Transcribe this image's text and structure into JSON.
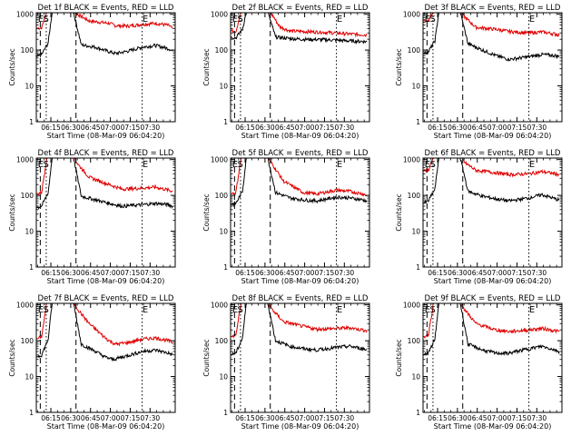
{
  "colors": {
    "events": "#000000",
    "lld": "#e00000",
    "axis": "#000000"
  },
  "common": {
    "ylabel": "Counts/sec",
    "xlabel": "Start Time (08-Mar-09 06:04:20)",
    "xticks": [
      "06:15",
      "06:30",
      "06:45",
      "07:00",
      "07:15",
      "07:30"
    ],
    "yticks": [
      "1",
      "10",
      "100",
      "1000"
    ]
  },
  "chart_data": [
    {
      "type": "line",
      "title": "Det 1f BLACK = Events, RED = LLD",
      "marker_labels": [
        "E",
        "S",
        "E"
      ],
      "yscale": "log",
      "ylim": [
        1,
        1100
      ],
      "series": [
        {
          "color": "#e00000",
          "points": [
            [
              0,
              400
            ],
            [
              4,
              420
            ],
            [
              8,
              1200
            ],
            [
              12,
              1200
            ],
            [
              28,
              1200
            ],
            [
              32,
              950
            ],
            [
              40,
              650
            ],
            [
              55,
              560
            ],
            [
              60,
              480
            ],
            [
              70,
              470
            ],
            [
              80,
              520
            ],
            [
              90,
              560
            ],
            [
              100,
              490
            ],
            [
              103,
              400
            ]
          ]
        },
        {
          "color": "#000000",
          "points": [
            [
              0,
              65
            ],
            [
              4,
              75
            ],
            [
              9,
              160
            ],
            [
              12,
              1200
            ],
            [
              28,
              1200
            ],
            [
              34,
              140
            ],
            [
              45,
              120
            ],
            [
              55,
              90
            ],
            [
              60,
              80
            ],
            [
              70,
              95
            ],
            [
              80,
              120
            ],
            [
              90,
              135
            ],
            [
              100,
              110
            ],
            [
              103,
              95
            ]
          ]
        }
      ]
    },
    {
      "type": "line",
      "title": "Det 2f BLACK = Events, RED = LLD",
      "marker_labels": [
        "E",
        "S",
        "E"
      ],
      "yscale": "log",
      "ylim": [
        1,
        1100
      ],
      "series": [
        {
          "color": "#e00000",
          "points": [
            [
              0,
              350
            ],
            [
              4,
              330
            ],
            [
              8,
              1200
            ],
            [
              12,
              1200
            ],
            [
              28,
              1200
            ],
            [
              32,
              900
            ],
            [
              37,
              450
            ],
            [
              45,
              340
            ],
            [
              55,
              330
            ],
            [
              65,
              320
            ],
            [
              80,
              300
            ],
            [
              90,
              280
            ],
            [
              100,
              270
            ],
            [
              103,
              260
            ]
          ]
        },
        {
          "color": "#000000",
          "points": [
            [
              0,
              230
            ],
            [
              4,
              220
            ],
            [
              9,
              380
            ],
            [
              12,
              1200
            ],
            [
              28,
              1200
            ],
            [
              34,
              230
            ],
            [
              45,
              210
            ],
            [
              55,
              200
            ],
            [
              70,
              195
            ],
            [
              80,
              190
            ],
            [
              90,
              180
            ],
            [
              100,
              175
            ],
            [
              103,
              170
            ]
          ]
        }
      ]
    },
    {
      "type": "line",
      "title": "Det 3f BLACK = Events, RED = LLD",
      "marker_labels": [
        "E",
        "S",
        "E"
      ],
      "yscale": "log",
      "ylim": [
        1,
        1100
      ],
      "series": [
        {
          "color": "#e00000",
          "points": [
            [
              0,
              650
            ],
            [
              4,
              680
            ],
            [
              8,
              1200
            ],
            [
              12,
              1200
            ],
            [
              28,
              1200
            ],
            [
              32,
              800
            ],
            [
              40,
              430
            ],
            [
              55,
              380
            ],
            [
              65,
              330
            ],
            [
              80,
              300
            ],
            [
              90,
              320
            ],
            [
              100,
              280
            ],
            [
              103,
              260
            ]
          ]
        },
        {
          "color": "#000000",
          "points": [
            [
              0,
              80
            ],
            [
              4,
              90
            ],
            [
              9,
              180
            ],
            [
              12,
              1200
            ],
            [
              28,
              1200
            ],
            [
              34,
              150
            ],
            [
              45,
              100
            ],
            [
              55,
              70
            ],
            [
              65,
              55
            ],
            [
              80,
              65
            ],
            [
              90,
              75
            ],
            [
              100,
              70
            ],
            [
              103,
              65
            ]
          ]
        }
      ]
    },
    {
      "type": "line",
      "title": "Det 4f BLACK = Events, RED = LLD",
      "marker_labels": [
        "E",
        "S",
        "E"
      ],
      "yscale": "log",
      "ylim": [
        1,
        1100
      ],
      "series": [
        {
          "color": "#e00000",
          "points": [
            [
              0,
              110
            ],
            [
              4,
              120
            ],
            [
              8,
              1200
            ],
            [
              12,
              1200
            ],
            [
              28,
              1200
            ],
            [
              32,
              700
            ],
            [
              40,
              320
            ],
            [
              55,
              200
            ],
            [
              65,
              150
            ],
            [
              80,
              160
            ],
            [
              90,
              170
            ],
            [
              100,
              140
            ],
            [
              103,
              130
            ]
          ]
        },
        {
          "color": "#000000",
          "points": [
            [
              0,
              45
            ],
            [
              4,
              50
            ],
            [
              9,
              120
            ],
            [
              12,
              1200
            ],
            [
              28,
              1200
            ],
            [
              34,
              95
            ],
            [
              45,
              75
            ],
            [
              55,
              60
            ],
            [
              65,
              50
            ],
            [
              80,
              55
            ],
            [
              90,
              60
            ],
            [
              100,
              55
            ],
            [
              103,
              50
            ]
          ]
        }
      ]
    },
    {
      "type": "line",
      "title": "Det 5f BLACK = Events, RED = LLD",
      "marker_labels": [
        "E",
        "S",
        "E"
      ],
      "yscale": "log",
      "ylim": [
        1,
        1100
      ],
      "series": [
        {
          "color": "#e00000",
          "points": [
            [
              0,
              110
            ],
            [
              4,
              120
            ],
            [
              8,
              1200
            ],
            [
              12,
              1200
            ],
            [
              28,
              1200
            ],
            [
              32,
              700
            ],
            [
              40,
              250
            ],
            [
              55,
              120
            ],
            [
              65,
              110
            ],
            [
              80,
              140
            ],
            [
              90,
              130
            ],
            [
              100,
              110
            ],
            [
              103,
              100
            ]
          ]
        },
        {
          "color": "#000000",
          "points": [
            [
              0,
              55
            ],
            [
              4,
              60
            ],
            [
              9,
              130
            ],
            [
              12,
              1200
            ],
            [
              28,
              1200
            ],
            [
              34,
              120
            ],
            [
              45,
              85
            ],
            [
              55,
              75
            ],
            [
              65,
              70
            ],
            [
              80,
              90
            ],
            [
              90,
              85
            ],
            [
              100,
              75
            ],
            [
              103,
              70
            ]
          ]
        }
      ]
    },
    {
      "type": "line",
      "title": "Det 6f BLACK = Events, RED = LLD",
      "marker_labels": [
        "E",
        "S",
        "E"
      ],
      "yscale": "log",
      "ylim": [
        1,
        1100
      ],
      "series": [
        {
          "color": "#e00000",
          "points": [
            [
              0,
              480
            ],
            [
              4,
              500
            ],
            [
              8,
              1200
            ],
            [
              12,
              1200
            ],
            [
              28,
              1200
            ],
            [
              32,
              800
            ],
            [
              40,
              500
            ],
            [
              55,
              430
            ],
            [
              65,
              380
            ],
            [
              80,
              400
            ],
            [
              90,
              460
            ],
            [
              100,
              400
            ],
            [
              103,
              380
            ]
          ]
        },
        {
          "color": "#000000",
          "points": [
            [
              0,
              60
            ],
            [
              4,
              70
            ],
            [
              9,
              150
            ],
            [
              12,
              1200
            ],
            [
              28,
              1200
            ],
            [
              34,
              130
            ],
            [
              45,
              95
            ],
            [
              55,
              80
            ],
            [
              65,
              70
            ],
            [
              80,
              85
            ],
            [
              90,
              105
            ],
            [
              100,
              80
            ],
            [
              103,
              75
            ]
          ]
        }
      ]
    },
    {
      "type": "line",
      "title": "Det 7f BLACK = Events, RED = LLD",
      "marker_labels": [
        "E",
        "S",
        "E"
      ],
      "yscale": "log",
      "ylim": [
        1,
        1100
      ],
      "series": [
        {
          "color": "#e00000",
          "points": [
            [
              0,
              110
            ],
            [
              4,
              130
            ],
            [
              8,
              1200
            ],
            [
              12,
              1200
            ],
            [
              28,
              1200
            ],
            [
              32,
              700
            ],
            [
              40,
              300
            ],
            [
              50,
              140
            ],
            [
              55,
              100
            ],
            [
              60,
              80
            ],
            [
              70,
              90
            ],
            [
              80,
              110
            ],
            [
              90,
              120
            ],
            [
              100,
              100
            ],
            [
              103,
              90
            ]
          ]
        },
        {
          "color": "#000000",
          "points": [
            [
              0,
              35
            ],
            [
              4,
              40
            ],
            [
              9,
              110
            ],
            [
              12,
              1200
            ],
            [
              28,
              1200
            ],
            [
              34,
              80
            ],
            [
              45,
              50
            ],
            [
              52,
              35
            ],
            [
              58,
              30
            ],
            [
              65,
              35
            ],
            [
              80,
              50
            ],
            [
              90,
              55
            ],
            [
              100,
              45
            ],
            [
              103,
              40
            ]
          ]
        }
      ]
    },
    {
      "type": "line",
      "title": "Det 8f BLACK = Events, RED = LLD",
      "marker_labels": [
        "E",
        "S",
        "E"
      ],
      "yscale": "log",
      "ylim": [
        1,
        1100
      ],
      "series": [
        {
          "color": "#e00000",
          "points": [
            [
              0,
              130
            ],
            [
              4,
              140
            ],
            [
              8,
              1200
            ],
            [
              12,
              1200
            ],
            [
              28,
              1200
            ],
            [
              32,
              700
            ],
            [
              40,
              340
            ],
            [
              55,
              250
            ],
            [
              65,
              210
            ],
            [
              80,
              220
            ],
            [
              90,
              230
            ],
            [
              100,
              200
            ],
            [
              103,
              190
            ]
          ]
        },
        {
          "color": "#000000",
          "points": [
            [
              0,
              40
            ],
            [
              4,
              45
            ],
            [
              9,
              120
            ],
            [
              12,
              1200
            ],
            [
              28,
              1200
            ],
            [
              34,
              100
            ],
            [
              45,
              70
            ],
            [
              55,
              60
            ],
            [
              65,
              55
            ],
            [
              80,
              65
            ],
            [
              90,
              70
            ],
            [
              100,
              60
            ],
            [
              103,
              55
            ]
          ]
        }
      ]
    },
    {
      "type": "line",
      "title": "Det 9f BLACK = Events, RED = LLD",
      "marker_labels": [
        "E",
        "S",
        "E"
      ],
      "yscale": "log",
      "ylim": [
        1,
        1100
      ],
      "series": [
        {
          "color": "#e00000",
          "points": [
            [
              0,
              130
            ],
            [
              4,
              140
            ],
            [
              8,
              1200
            ],
            [
              12,
              1200
            ],
            [
              28,
              1200
            ],
            [
              32,
              700
            ],
            [
              40,
              300
            ],
            [
              55,
              200
            ],
            [
              65,
              180
            ],
            [
              80,
              200
            ],
            [
              90,
              220
            ],
            [
              100,
              190
            ],
            [
              103,
              180
            ]
          ]
        },
        {
          "color": "#000000",
          "points": [
            [
              0,
              40
            ],
            [
              4,
              45
            ],
            [
              9,
              110
            ],
            [
              12,
              1200
            ],
            [
              28,
              1200
            ],
            [
              34,
              80
            ],
            [
              45,
              55
            ],
            [
              55,
              45
            ],
            [
              65,
              45
            ],
            [
              80,
              60
            ],
            [
              90,
              70
            ],
            [
              100,
              55
            ],
            [
              103,
              50
            ]
          ]
        }
      ]
    }
  ]
}
